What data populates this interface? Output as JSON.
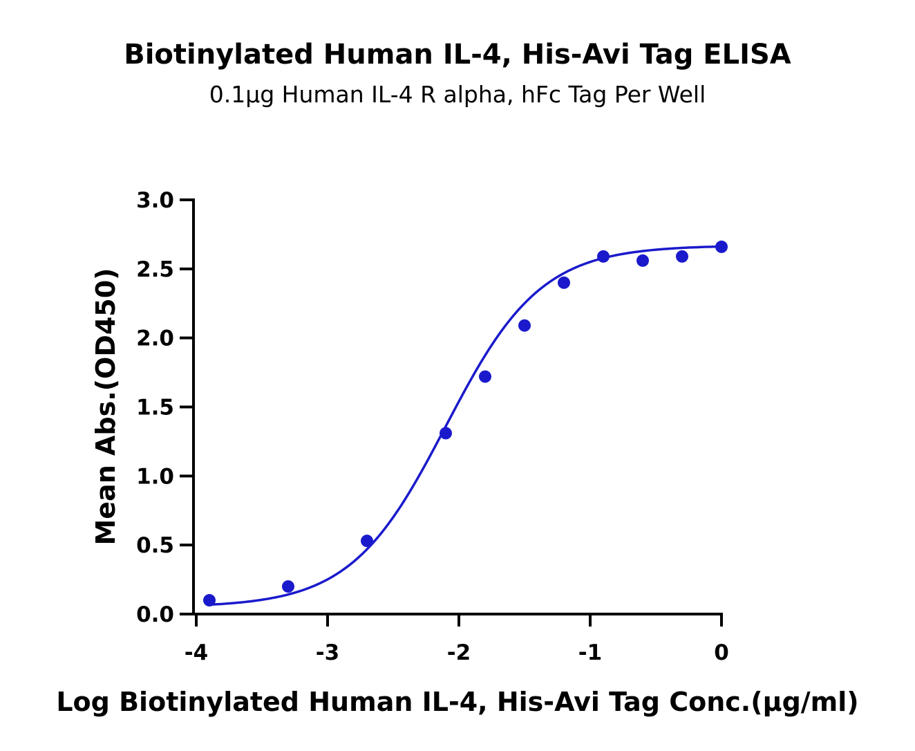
{
  "chart_data": {
    "type": "scatter",
    "title": "Biotinylated Human IL-4, His-Avi Tag ELISA",
    "subtitle": "0.1μg Human IL-4 R alpha, hFc Tag Per Well",
    "xlabel": "Log Biotinylated Human IL-4, His-Avi Tag Conc.(μg/ml)",
    "ylabel": "Mean Abs.(OD450)",
    "xlim": [
      -4,
      0
    ],
    "ylim": [
      0,
      3
    ],
    "x_ticks": [
      -4,
      -3,
      -2,
      -1,
      0
    ],
    "x_tick_labels": [
      "-4",
      "-3",
      "-2",
      "-1",
      "0"
    ],
    "y_ticks": [
      0,
      0.5,
      1,
      1.5,
      2,
      2.5,
      3
    ],
    "y_tick_labels": [
      "0.0",
      "0.5",
      "1.0",
      "1.5",
      "2.0",
      "2.5",
      "3.0"
    ],
    "grid": false,
    "color": "#1a1acc",
    "series": [
      {
        "x": [
          -3.9,
          -3.3,
          -2.7,
          -2.1,
          -1.8,
          -1.5,
          -1.2,
          -0.9,
          -0.6,
          -0.3,
          0.0
        ],
        "y": [
          0.1,
          0.2,
          0.53,
          1.31,
          1.72,
          2.09,
          2.4,
          2.59,
          2.56,
          2.59,
          2.66
        ]
      }
    ],
    "fit": {
      "model": "4PL",
      "bottom": 0.05,
      "top": 2.67,
      "log_ec50": -2.1,
      "hill": 1.2
    }
  }
}
